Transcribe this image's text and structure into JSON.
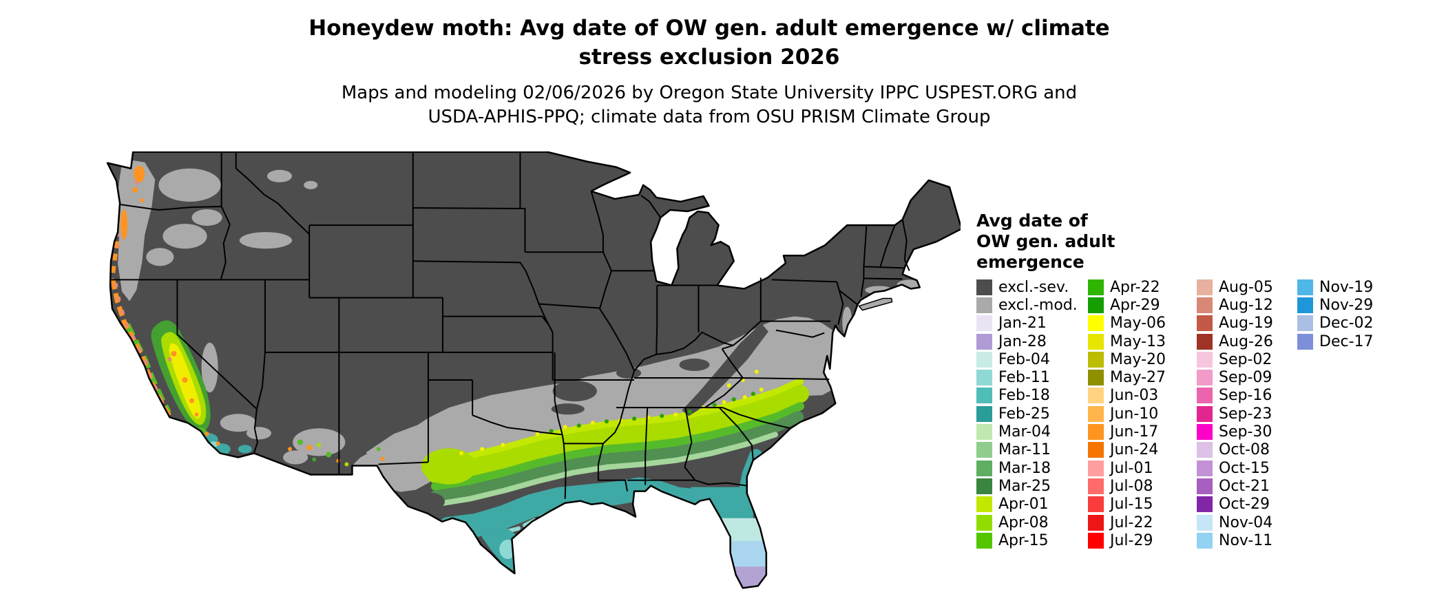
{
  "title": {
    "line1": "Honeydew moth: Avg date of OW gen. adult emergence w/ climate",
    "line2": "stress exclusion 2026"
  },
  "subtitle": {
    "line1": "Maps and modeling 02/06/2026 by Oregon State University IPPC USPEST.ORG and",
    "line2": "USDA-APHIS-PPQ; climate data from OSU PRISM Climate Group"
  },
  "map": {
    "type": "choropleth-raster",
    "region": "Continental United States (lower 48 states)",
    "colors": {
      "background": "#ffffff",
      "excluded_severe": "#4d4d4d",
      "excluded_moderate": "#aaaaaa",
      "state_border": "#000000"
    }
  },
  "legend": {
    "title_lines": [
      "Avg date of",
      "OW gen. adult",
      "emergence"
    ],
    "columns": [
      {
        "entries": [
          {
            "label": "excl.-sev.",
            "color": "#4d4d4d"
          },
          {
            "label": "excl.-mod.",
            "color": "#aaaaaa"
          },
          {
            "label": "Jan-21",
            "color": "#e9e3f4"
          },
          {
            "label": "Jan-28",
            "color": "#af9cd5"
          },
          {
            "label": "Feb-04",
            "color": "#c9ece7"
          },
          {
            "label": "Feb-11",
            "color": "#8fd9d4"
          },
          {
            "label": "Feb-18",
            "color": "#4fbdb8"
          },
          {
            "label": "Feb-25",
            "color": "#2a9d98"
          },
          {
            "label": "Mar-04",
            "color": "#c0e8b0"
          },
          {
            "label": "Mar-11",
            "color": "#90cd8d"
          },
          {
            "label": "Mar-18",
            "color": "#5fae62"
          },
          {
            "label": "Mar-25",
            "color": "#3a8540"
          },
          {
            "label": "Apr-01",
            "color": "#c3e800"
          },
          {
            "label": "Apr-08",
            "color": "#93dc00"
          },
          {
            "label": "Apr-15",
            "color": "#53c600"
          }
        ]
      },
      {
        "entries": [
          {
            "label": "Apr-22",
            "color": "#2db500"
          },
          {
            "label": "Apr-29",
            "color": "#149e00"
          },
          {
            "label": "May-06",
            "color": "#ffff00"
          },
          {
            "label": "May-13",
            "color": "#e6e600"
          },
          {
            "label": "May-20",
            "color": "#bcbc00"
          },
          {
            "label": "May-27",
            "color": "#8f8f00"
          },
          {
            "label": "Jun-03",
            "color": "#ffd37f"
          },
          {
            "label": "Jun-10",
            "color": "#ffb54c"
          },
          {
            "label": "Jun-17",
            "color": "#ff941f"
          },
          {
            "label": "Jun-24",
            "color": "#f57500"
          },
          {
            "label": "Jul-01",
            "color": "#ff9e9e"
          },
          {
            "label": "Jul-08",
            "color": "#ff6b6b"
          },
          {
            "label": "Jul-15",
            "color": "#fb3c3c"
          },
          {
            "label": "Jul-22",
            "color": "#ed1515"
          },
          {
            "label": "Jul-29",
            "color": "#ff0000"
          }
        ]
      },
      {
        "entries": [
          {
            "label": "Aug-05",
            "color": "#e8b09e"
          },
          {
            "label": "Aug-12",
            "color": "#d98877"
          },
          {
            "label": "Aug-19",
            "color": "#c25a47"
          },
          {
            "label": "Aug-26",
            "color": "#9e3326"
          },
          {
            "label": "Sep-02",
            "color": "#f6c6de"
          },
          {
            "label": "Sep-09",
            "color": "#f29bc9"
          },
          {
            "label": "Sep-16",
            "color": "#ec64ad"
          },
          {
            "label": "Sep-23",
            "color": "#e3258f"
          },
          {
            "label": "Sep-30",
            "color": "#ff00c8"
          },
          {
            "label": "Oct-08",
            "color": "#ddc1e6"
          },
          {
            "label": "Oct-15",
            "color": "#c392d6"
          },
          {
            "label": "Oct-21",
            "color": "#a75fc0"
          },
          {
            "label": "Oct-29",
            "color": "#8226a8"
          },
          {
            "label": "Nov-04",
            "color": "#c5e6f6"
          },
          {
            "label": "Nov-11",
            "color": "#93d2f0"
          }
        ]
      },
      {
        "entries": [
          {
            "label": "Nov-19",
            "color": "#4fb6e8"
          },
          {
            "label": "Nov-29",
            "color": "#1f96d8"
          },
          {
            "label": "Dec-02",
            "color": "#a9bfe3"
          },
          {
            "label": "Dec-17",
            "color": "#7c8fd8"
          }
        ]
      }
    ]
  }
}
